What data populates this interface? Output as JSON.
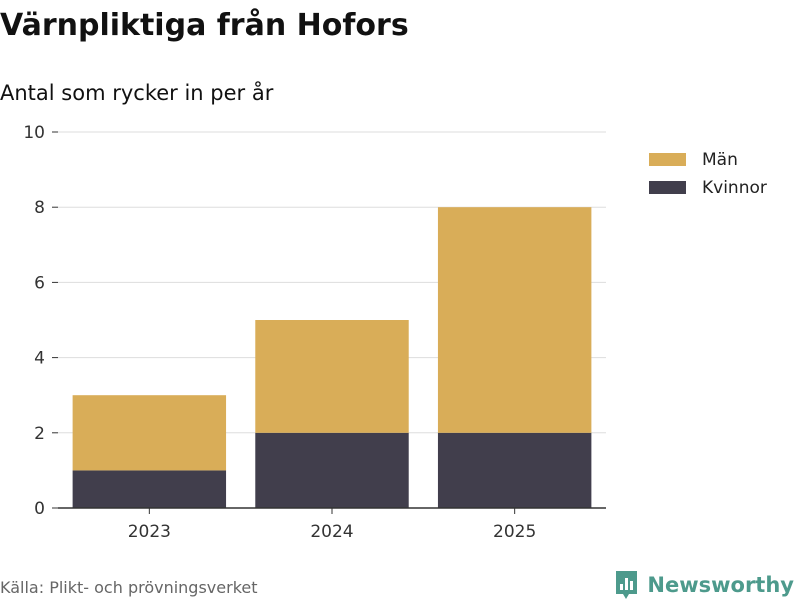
{
  "chart_data": {
    "type": "bar",
    "stacked": true,
    "title": "Värnpliktiga från Hofors",
    "subtitle": "Antal som rycker in per år",
    "categories": [
      "2023",
      "2024",
      "2025"
    ],
    "series": [
      {
        "name": "Kvinnor",
        "values": [
          1,
          2,
          2
        ],
        "color": "#413e4c"
      },
      {
        "name": "Män",
        "values": [
          2,
          3,
          6
        ],
        "color": "#d9ad58"
      }
    ],
    "legend_order": [
      "Män",
      "Kvinnor"
    ],
    "ylim": [
      0,
      10
    ],
    "yticks": [
      "0",
      "2",
      "4",
      "6",
      "8",
      "10"
    ],
    "grid": true,
    "legend_position": "top-right"
  },
  "footer": {
    "source": "Källa: Plikt- och prövningsverket",
    "brand": "Newsworthy"
  },
  "colors": {
    "grid": "#dddddd",
    "axis": "#333333",
    "brand": "#4d9a8c"
  },
  "icons": {
    "brand_logo": "newsworthy-logo-icon"
  }
}
